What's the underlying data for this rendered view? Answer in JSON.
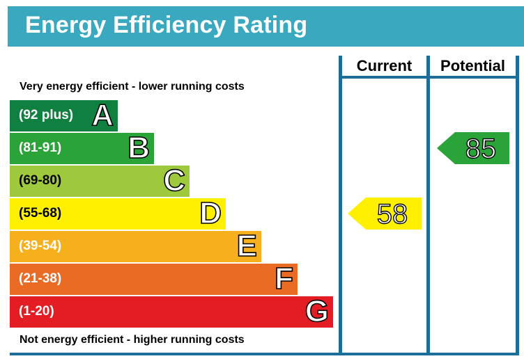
{
  "title": "Energy Efficiency Rating",
  "columns": {
    "current": "Current",
    "potential": "Potential"
  },
  "top_caption": "Very energy efficient - lower running costs",
  "bottom_caption": "Not energy efficient - higher running costs",
  "colors": {
    "header": "#3aa8bf",
    "frame": "#1a6e99"
  },
  "chart_data": {
    "type": "bar",
    "categories": [
      "A",
      "B",
      "C",
      "D",
      "E",
      "F",
      "G"
    ],
    "ranges": [
      "(92 plus)",
      "(81-91)",
      "(69-80)",
      "(55-68)",
      "(39-54)",
      "(21-38)",
      "(1-20)"
    ],
    "range_bounds": [
      [
        92,
        100
      ],
      [
        81,
        91
      ],
      [
        69,
        80
      ],
      [
        55,
        68
      ],
      [
        39,
        54
      ],
      [
        21,
        38
      ],
      [
        1,
        20
      ]
    ],
    "band_colors": [
      "#0f8040",
      "#2aa338",
      "#9ec93d",
      "#fff000",
      "#f6b01d",
      "#ea6b24",
      "#e31d23"
    ],
    "ratings": {
      "current": {
        "value": 58,
        "band": "D",
        "color": "#fff000"
      },
      "potential": {
        "value": 85,
        "band": "B",
        "color": "#2aa338"
      }
    }
  }
}
